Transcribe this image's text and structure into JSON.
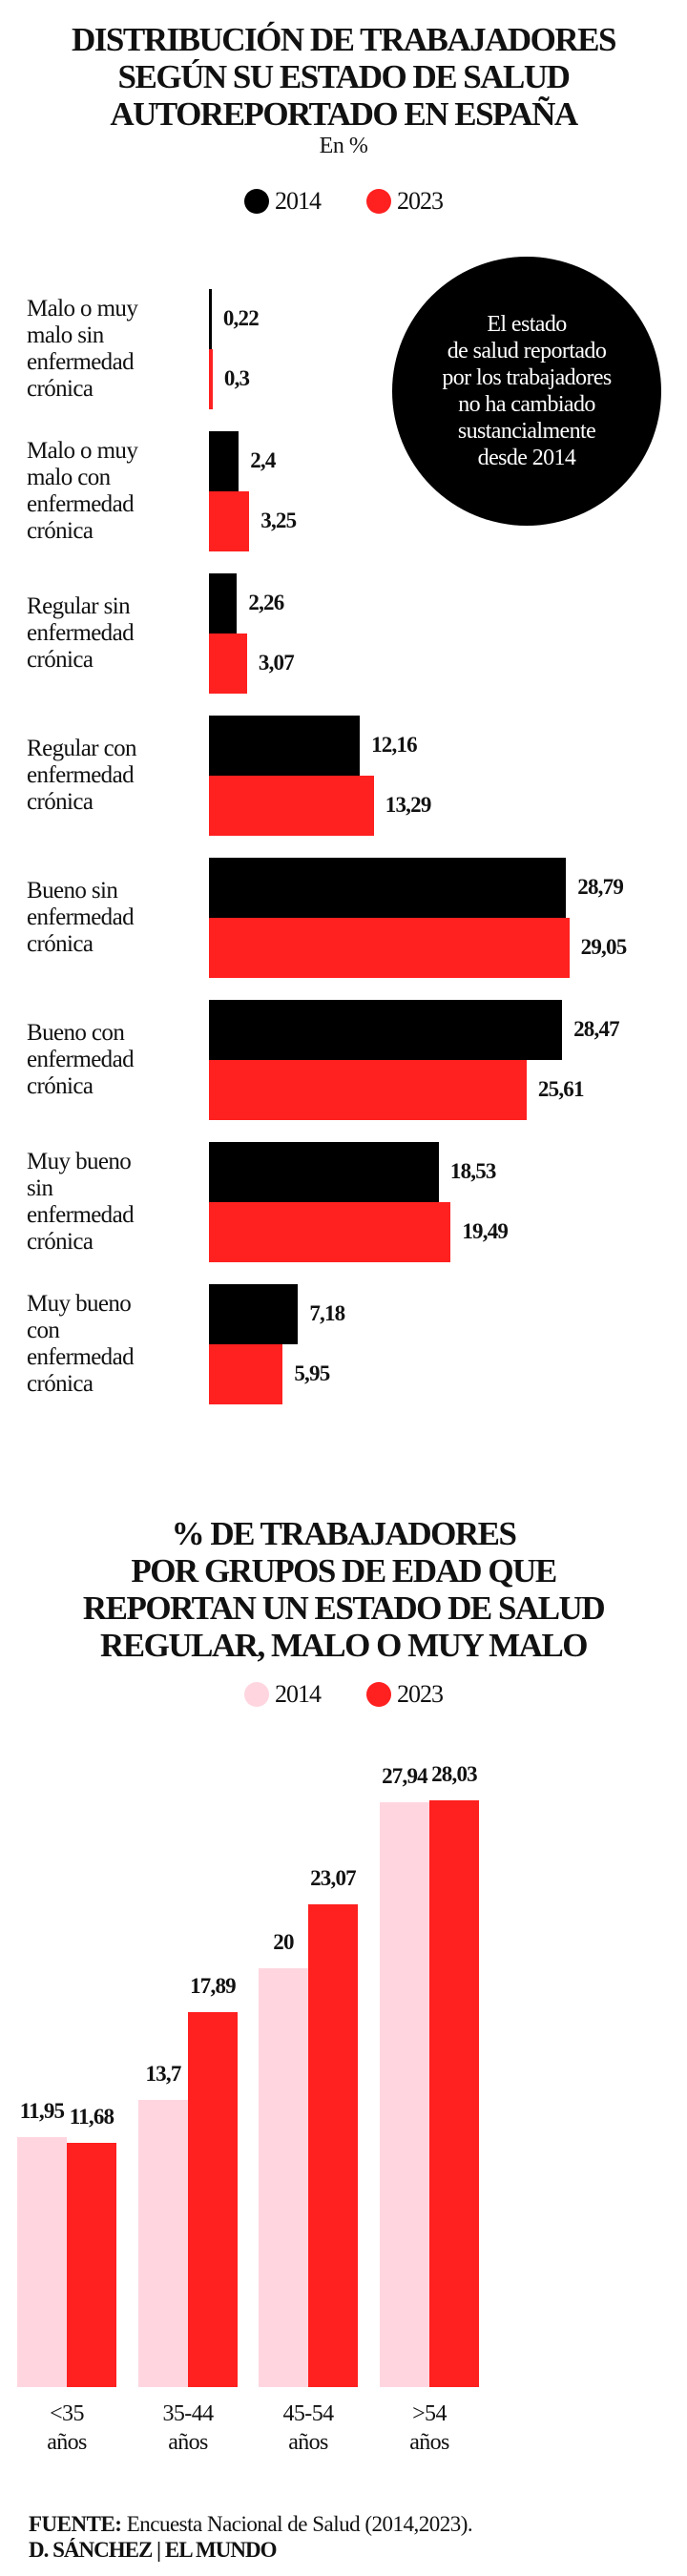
{
  "chart_data": [
    {
      "type": "bar",
      "orientation": "horizontal",
      "title_lines": [
        "DISTRIBUCIÓN DE TRABAJADORES",
        "SEGÚN SU ESTADO DE SALUD",
        "AUTOREPORTADO EN ESPAÑA"
      ],
      "subtitle": "En %",
      "legend": [
        {
          "name": "2014",
          "color": "#000000"
        },
        {
          "name": "2023",
          "color": "#ff2020"
        }
      ],
      "categories": [
        [
          "Malo o muy",
          "malo sin",
          "enfermedad",
          "crónica"
        ],
        [
          "Malo o muy",
          "malo con",
          "enfermedad",
          "crónica"
        ],
        [
          "Regular sin",
          "enfermedad",
          "crónica"
        ],
        [
          "Regular con",
          "enfermedad",
          "crónica"
        ],
        [
          "Bueno sin",
          "enfermedad",
          "crónica"
        ],
        [
          "Bueno con",
          "enfermedad",
          "crónica"
        ],
        [
          "Muy bueno",
          "sin",
          "enfermedad",
          "crónica"
        ],
        [
          "Muy bueno",
          "con",
          "enfermedad",
          "crónica"
        ]
      ],
      "series": [
        {
          "name": "2014",
          "values": [
            0.22,
            2.4,
            2.26,
            12.16,
            28.79,
            28.47,
            18.53,
            7.18
          ],
          "labels": [
            "0,22",
            "2,4",
            "2,26",
            "12,16",
            "28,79",
            "28,47",
            "18,53",
            "7,18"
          ]
        },
        {
          "name": "2023",
          "values": [
            0.3,
            3.25,
            3.07,
            13.29,
            29.05,
            25.61,
            19.49,
            5.95
          ],
          "labels": [
            "0,3",
            "3,25",
            "3,07",
            "13,29",
            "29,05",
            "25,61",
            "19,49",
            "5,95"
          ]
        }
      ],
      "annotation": [
        "El estado",
        "de salud reportado",
        "por los trabajadores",
        "no ha cambiado",
        "sustancialmente",
        "desde 2014"
      ]
    },
    {
      "type": "bar",
      "orientation": "vertical",
      "title_lines": [
        "% DE TRABAJADORES",
        "POR GRUPOS DE EDAD QUE",
        "REPORTAN UN ESTADO DE SALUD",
        "REGULAR, MALO O MUY MALO"
      ],
      "legend": [
        {
          "name": "2014",
          "color": "#ffd6e0"
        },
        {
          "name": "2023",
          "color": "#ff2020"
        }
      ],
      "categories": [
        [
          "<35",
          "años"
        ],
        [
          "35-44",
          "años"
        ],
        [
          "45-54",
          "años"
        ],
        [
          ">54",
          "años"
        ]
      ],
      "series": [
        {
          "name": "2014",
          "values": [
            11.95,
            13.7,
            20,
            27.94
          ],
          "labels": [
            "11,95",
            "13,7",
            "20",
            "27,94"
          ]
        },
        {
          "name": "2023",
          "values": [
            11.68,
            17.89,
            23.07,
            28.03
          ],
          "labels": [
            "11,68",
            "17,89",
            "23,07",
            "28,03"
          ]
        }
      ]
    }
  ],
  "footer": {
    "source_label": "FUENTE:",
    "source_text": " Encuesta Nacional de Salud (2014,2023).",
    "credit": "D. SÁNCHEZ | EL MUNDO"
  }
}
